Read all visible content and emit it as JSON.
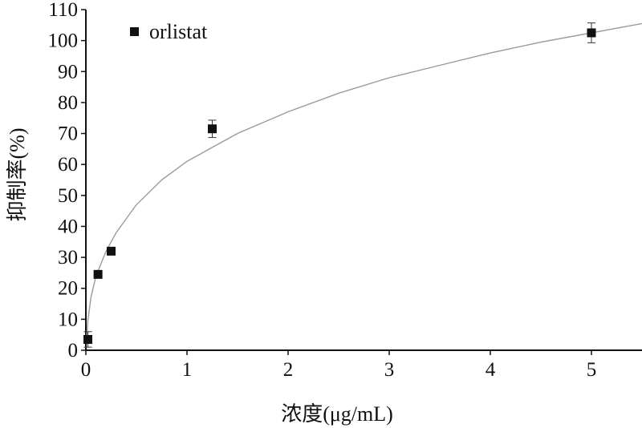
{
  "chart_data": {
    "type": "scatter",
    "title": "",
    "xlabel": "浓度(μg/mL)",
    "ylabel": "抑制率(%)",
    "xlim": [
      0,
      5.5
    ],
    "ylim": [
      0,
      110
    ],
    "xticks": [
      0,
      1,
      2,
      3,
      4,
      5
    ],
    "yticks": [
      0,
      10,
      20,
      30,
      40,
      50,
      60,
      70,
      80,
      90,
      100,
      110
    ],
    "grid": false,
    "legend_position": "top-left",
    "series": [
      {
        "name": "orlistat",
        "marker": "square",
        "color": "#111111",
        "x": [
          0.02,
          0.12,
          0.25,
          1.25,
          5.0
        ],
        "y": [
          3.5,
          24.5,
          32,
          71.5,
          102.5
        ],
        "error": [
          2.5,
          0.8,
          0.8,
          2.8,
          3.2
        ]
      }
    ],
    "fit_curve": {
      "color": "#9a9a9a",
      "x": [
        0.005,
        0.02,
        0.05,
        0.1,
        0.2,
        0.3,
        0.5,
        0.75,
        1.0,
        1.5,
        2.0,
        2.5,
        3.0,
        3.5,
        4.0,
        4.5,
        5.0,
        5.5
      ],
      "y": [
        3,
        9.5,
        17,
        24,
        32,
        38,
        47,
        55,
        61,
        70,
        77,
        83,
        88,
        92,
        96,
        99.5,
        102.5,
        105.5
      ]
    }
  }
}
